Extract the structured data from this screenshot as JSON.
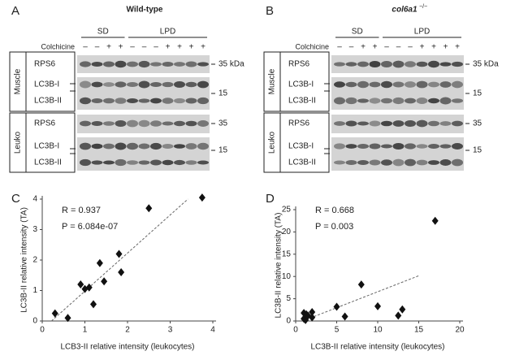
{
  "blots": [
    {
      "label": "A",
      "title": "Wild-type",
      "groups": [
        "SD",
        "LPD"
      ],
      "treatment": "Colchicine",
      "signs": [
        "–",
        "–",
        "+",
        "+",
        "–",
        "–",
        "–",
        "+",
        "+",
        "+",
        "+"
      ],
      "tissues": [
        "Muscle",
        "Leuko"
      ],
      "markers": [
        "RPS6",
        "LC3B-I",
        "LC3B-II",
        "RPS6",
        "LC3B-I",
        "LC3B-II"
      ],
      "sizes": [
        "35 kDa",
        "15",
        "35",
        "15"
      ]
    },
    {
      "label": "B",
      "title": "col6a1",
      "title_sup": "−/−",
      "groups": [
        "SD",
        "LPD"
      ],
      "treatment": "Colchicine",
      "signs": [
        "–",
        "–",
        "+",
        "+",
        "–",
        "–",
        "–",
        "+",
        "+",
        "+",
        "+"
      ],
      "tissues": [
        "Muscle",
        "Leuko"
      ],
      "markers": [
        "RPS6",
        "LC3B-I",
        "LC3B-II",
        "RPS6",
        "LC3B-I",
        "LC3B-II"
      ],
      "sizes": [
        "35 kDa",
        "15",
        "35",
        "15"
      ]
    }
  ],
  "chart_data": [
    {
      "type": "scatter",
      "label": "C",
      "annotations": [
        "R = 0.937",
        "P = 6.084e-07"
      ],
      "x_label": "LCB3-II relative intensity (leukocytes)",
      "y_label": "LC3B-II relative intensity (TA)",
      "x": [
        0.3,
        0.6,
        0.9,
        1.0,
        1.1,
        1.2,
        1.35,
        1.45,
        1.8,
        1.85,
        2.5,
        3.75
      ],
      "values": [
        0.25,
        0.1,
        1.2,
        1.05,
        1.1,
        0.55,
        1.9,
        1.3,
        2.2,
        1.6,
        3.7,
        4.05
      ],
      "color": "#111111",
      "trendline": true,
      "xlim": [
        0,
        4
      ],
      "xticks": [
        0,
        1,
        2,
        3,
        4
      ],
      "ylim": [
        0,
        4
      ],
      "yticks": [
        0,
        1,
        2,
        3,
        4
      ],
      "grid": false
    },
    {
      "type": "scatter",
      "label": "D",
      "annotations": [
        "R = 0.668",
        "P = 0.003"
      ],
      "x_label": "LC3B-II relative intensity (leukocytes)",
      "y_label": "LC3B-II relative intensity (TA)",
      "x": [
        1,
        1,
        1.2,
        1.5,
        2,
        2,
        1.3,
        5,
        6,
        8,
        10,
        12.5,
        13,
        17
      ],
      "values": [
        1.8,
        0.5,
        0.2,
        1.2,
        2,
        0.8,
        1.5,
        3.2,
        1,
        8.2,
        3.3,
        1.2,
        2.6,
        22.5
      ],
      "color": "#111111",
      "trendline": true,
      "xlim": [
        0,
        20
      ],
      "xticks": [
        0,
        5,
        10,
        15,
        20
      ],
      "ylim": [
        0,
        25
      ],
      "yticks": [
        0,
        5,
        10,
        15,
        20,
        25
      ],
      "grid": false
    }
  ]
}
